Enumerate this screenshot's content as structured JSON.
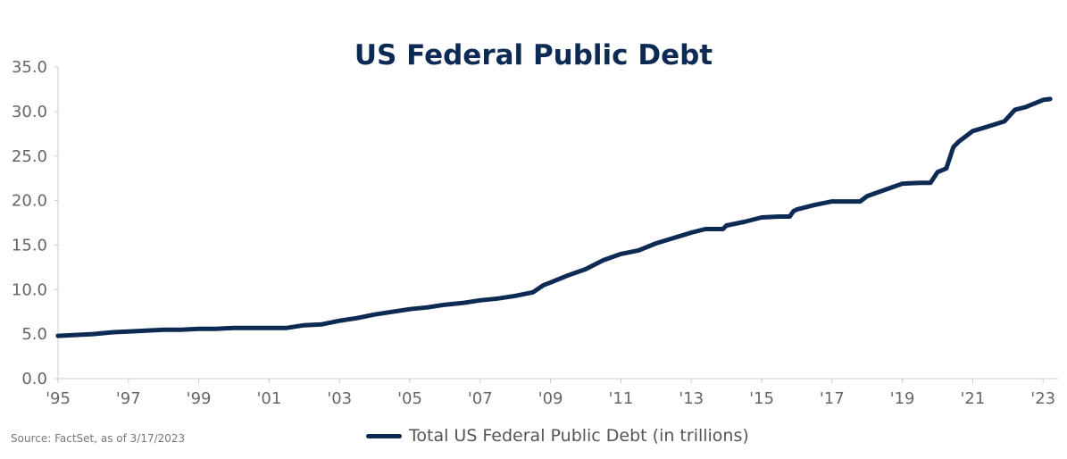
{
  "chart_data": {
    "type": "line",
    "title": "US Federal Public Debt",
    "source": "Source: FactSet, as of 3/17/2023",
    "xlabel": "",
    "ylabel": "",
    "xlim": [
      1995,
      2023.3
    ],
    "ylim": [
      0,
      35
    ],
    "yticks": [
      "0.0",
      "5.0",
      "10.0",
      "15.0",
      "20.0",
      "25.0",
      "30.0",
      "35.0"
    ],
    "ytick_values": [
      0,
      5,
      10,
      15,
      20,
      25,
      30,
      35
    ],
    "xticks": [
      "'95",
      "'97",
      "'99",
      "'01",
      "'03",
      "'05",
      "'07",
      "'09",
      "'11",
      "'13",
      "'15",
      "'17",
      "'19",
      "'21",
      "'23"
    ],
    "xtick_values": [
      1995,
      1997,
      1999,
      2001,
      2003,
      2005,
      2007,
      2009,
      2011,
      2013,
      2015,
      2017,
      2019,
      2021,
      2023
    ],
    "grid": false,
    "legend_placement": "bottom",
    "line_color": "#0d2a54",
    "series": [
      {
        "name": "Total US Federal Public Debt (in trillions)",
        "x": [
          1995,
          1995.5,
          1996,
          1996.5,
          1997,
          1997.5,
          1998,
          1998.5,
          1999,
          1999.5,
          2000,
          2000.5,
          2001,
          2001.5,
          2002,
          2002.5,
          2003,
          2003.5,
          2004,
          2004.5,
          2005,
          2005.5,
          2006,
          2006.5,
          2007,
          2007.5,
          2008,
          2008.5,
          2008.8,
          2009,
          2009.5,
          2010,
          2010.5,
          2011,
          2011.5,
          2012,
          2012.5,
          2013,
          2013.4,
          2013.9,
          2014,
          2014.5,
          2015,
          2015.5,
          2015.8,
          2015.9,
          2016,
          2016.5,
          2017,
          2017.5,
          2017.8,
          2018,
          2018.5,
          2019,
          2019.5,
          2019.8,
          2020,
          2020.25,
          2020.45,
          2020.6,
          2021,
          2021.5,
          2021.9,
          2022.2,
          2022.5,
          2023,
          2023.2
        ],
        "values": [
          4.8,
          4.9,
          5.0,
          5.2,
          5.3,
          5.4,
          5.5,
          5.5,
          5.6,
          5.6,
          5.7,
          5.7,
          5.7,
          5.7,
          6.0,
          6.1,
          6.5,
          6.8,
          7.2,
          7.5,
          7.8,
          8.0,
          8.3,
          8.5,
          8.8,
          9.0,
          9.3,
          9.7,
          10.5,
          10.8,
          11.6,
          12.3,
          13.3,
          14.0,
          14.4,
          15.2,
          15.8,
          16.4,
          16.8,
          16.8,
          17.2,
          17.6,
          18.1,
          18.2,
          18.2,
          18.8,
          19.0,
          19.5,
          19.9,
          19.9,
          19.9,
          20.5,
          21.2,
          21.9,
          22.0,
          22.0,
          23.2,
          23.6,
          26.0,
          26.6,
          27.8,
          28.4,
          28.9,
          30.2,
          30.5,
          31.3,
          31.4
        ]
      }
    ]
  }
}
